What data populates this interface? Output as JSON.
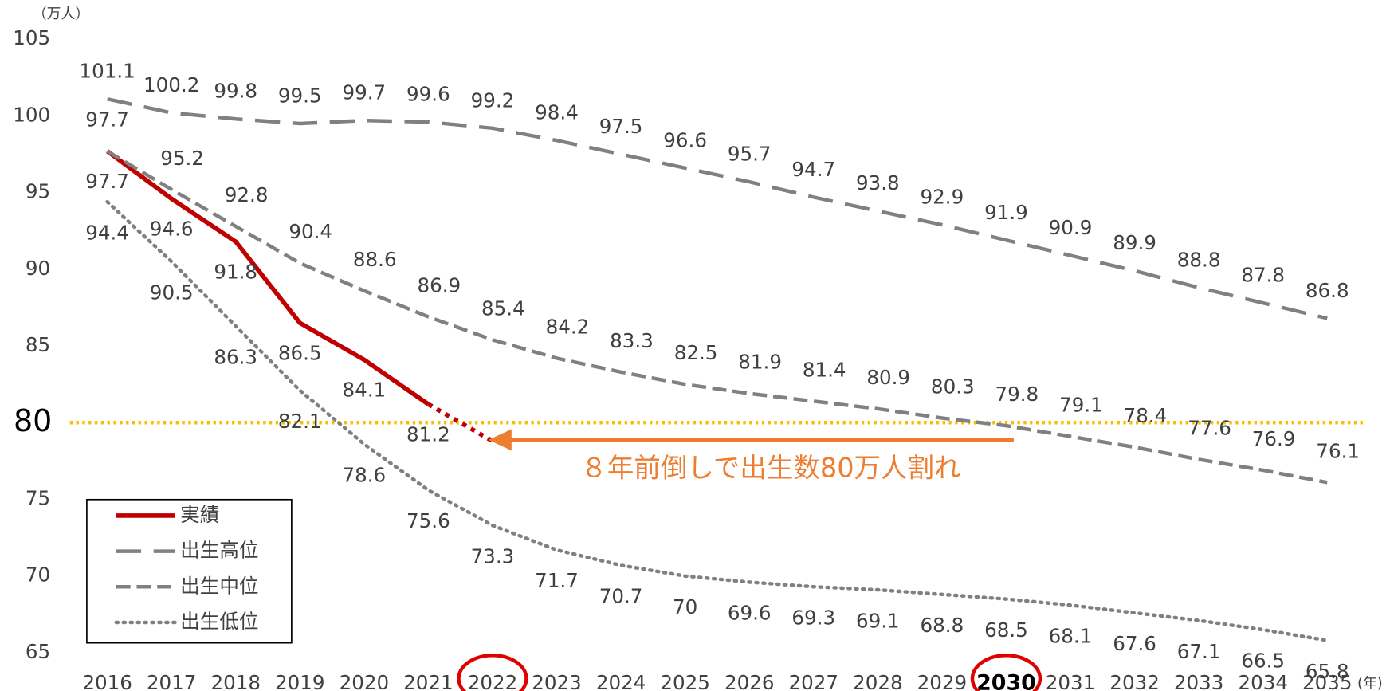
{
  "chart_data": {
    "type": "line",
    "y_unit": "（万人）",
    "x_unit": "(年)",
    "categories": [
      "2016",
      "2017",
      "2018",
      "2019",
      "2020",
      "2021",
      "2022",
      "2023",
      "2024",
      "2025",
      "2026",
      "2027",
      "2028",
      "2029",
      "2030",
      "2031",
      "2032",
      "2033",
      "2034",
      "2035"
    ],
    "ylim": [
      65,
      105
    ],
    "yticks": [
      65,
      70,
      75,
      80,
      85,
      90,
      95,
      100,
      105
    ],
    "reference_line": {
      "value": 80,
      "color": "#f5c000"
    },
    "circled_categories": [
      6,
      14
    ],
    "bold_categories": [
      14
    ],
    "annotation": {
      "text": "８年前倒しで出生数80万人割れ",
      "color": "#ed7d31"
    },
    "legend": "bottom-left",
    "series": [
      {
        "name": "実績",
        "color": "#c00000",
        "style": "solid",
        "dotted_after": 5,
        "values": [
          97.7,
          94.6,
          91.8,
          86.5,
          84.1,
          81.2,
          78.8,
          null,
          null,
          null,
          null,
          null,
          null,
          null,
          null,
          null,
          null,
          null,
          null,
          null
        ],
        "labeled": [
          0,
          1,
          2,
          3,
          4,
          5
        ]
      },
      {
        "name": "出生高位",
        "color": "#808080",
        "style": "longdash",
        "values": [
          101.1,
          100.2,
          99.8,
          99.5,
          99.7,
          99.6,
          99.2,
          98.4,
          97.5,
          96.6,
          95.7,
          94.7,
          93.8,
          92.9,
          91.9,
          90.9,
          89.9,
          88.8,
          87.8,
          86.8
        ]
      },
      {
        "name": "出生中位",
        "color": "#808080",
        "style": "dash",
        "values": [
          97.7,
          95.2,
          92.8,
          90.4,
          88.6,
          86.9,
          85.4,
          84.2,
          83.3,
          82.5,
          81.9,
          81.4,
          80.9,
          80.3,
          79.8,
          79.1,
          78.4,
          77.6,
          76.9,
          76.1
        ]
      },
      {
        "name": "出生低位",
        "color": "#808080",
        "style": "dot",
        "values": [
          94.4,
          90.5,
          86.3,
          82.1,
          78.6,
          75.6,
          73.3,
          71.7,
          70.7,
          70,
          69.6,
          69.3,
          69.1,
          68.8,
          68.5,
          68.1,
          67.6,
          67.1,
          66.5,
          65.8
        ]
      }
    ]
  }
}
